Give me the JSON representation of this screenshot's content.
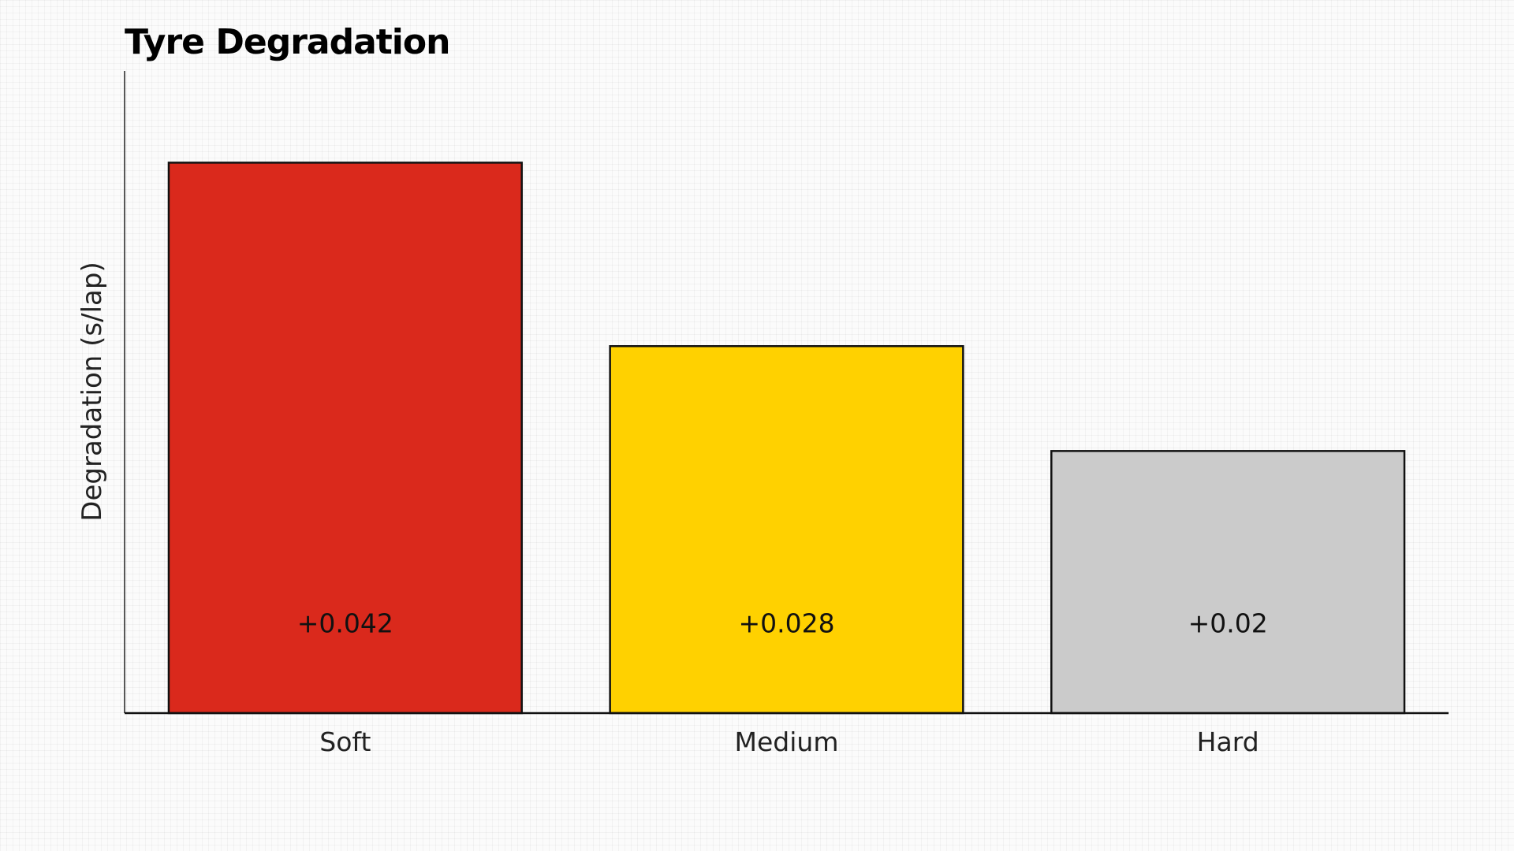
{
  "chart_data": {
    "type": "bar",
    "title": "Tyre Degradation",
    "xlabel": "",
    "ylabel": "Degradation (s/lap)",
    "categories": [
      "Soft",
      "Medium",
      "Hard"
    ],
    "values": [
      0.042,
      0.028,
      0.02
    ],
    "data_labels": [
      "+0.042",
      "+0.028",
      "+0.02"
    ],
    "colors": [
      "#da291c",
      "#ffd100",
      "#cbcbcb"
    ],
    "ylim": [
      0,
      0.049
    ],
    "y_ticks_shown": false,
    "grid": false,
    "legend": "none"
  }
}
